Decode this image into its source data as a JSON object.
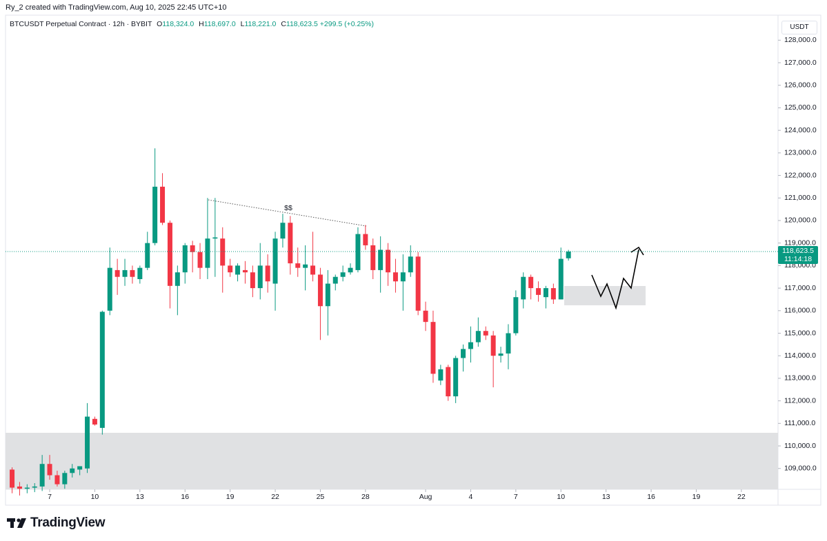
{
  "header": {
    "caption": "Ry_2 created with TradingView.com, Aug 10, 2025 22:45 UTC+10"
  },
  "legend": {
    "symbol": "BTCUSDT Perpetual Contract · 12h · BYBIT",
    "open_key": "O",
    "open": "118,324.0",
    "high_key": "H",
    "high": "118,697.0",
    "low_key": "L",
    "low": "118,221.0",
    "close_key": "C",
    "close": "118,623.5",
    "change": "+299.5 (+0.25%)"
  },
  "currency": "USDT",
  "brand": "TradingView",
  "chart_data": {
    "type": "candlestick",
    "up_color": "#089981",
    "down_color": "#f23645",
    "x": [
      "2025-07-04T12:00",
      "2025-07-05T00:00",
      "2025-07-05T12:00",
      "2025-07-06T00:00",
      "2025-07-06T12:00",
      "2025-07-07T00:00",
      "2025-07-07T12:00",
      "2025-07-08T00:00",
      "2025-07-08T12:00",
      "2025-07-09T00:00",
      "2025-07-09T12:00",
      "2025-07-10T00:00",
      "2025-07-10T12:00",
      "2025-07-11T00:00",
      "2025-07-11T12:00",
      "2025-07-12T00:00",
      "2025-07-12T12:00",
      "2025-07-13T00:00",
      "2025-07-13T12:00",
      "2025-07-14T00:00",
      "2025-07-14T12:00",
      "2025-07-15T00:00",
      "2025-07-15T12:00",
      "2025-07-16T00:00",
      "2025-07-16T12:00",
      "2025-07-17T00:00",
      "2025-07-17T12:00",
      "2025-07-18T00:00",
      "2025-07-18T12:00",
      "2025-07-19T00:00",
      "2025-07-19T12:00",
      "2025-07-20T00:00",
      "2025-07-20T12:00",
      "2025-07-21T00:00",
      "2025-07-21T12:00",
      "2025-07-22T00:00",
      "2025-07-22T12:00",
      "2025-07-23T00:00",
      "2025-07-23T12:00",
      "2025-07-24T00:00",
      "2025-07-24T12:00",
      "2025-07-25T00:00",
      "2025-07-25T12:00",
      "2025-07-26T00:00",
      "2025-07-26T12:00",
      "2025-07-27T00:00",
      "2025-07-27T12:00",
      "2025-07-28T00:00",
      "2025-07-28T12:00",
      "2025-07-29T00:00",
      "2025-07-29T12:00",
      "2025-07-30T00:00",
      "2025-07-30T12:00",
      "2025-07-31T00:00",
      "2025-07-31T12:00",
      "2025-08-01T00:00",
      "2025-08-01T12:00",
      "2025-08-02T00:00",
      "2025-08-02T12:00",
      "2025-08-03T00:00",
      "2025-08-03T12:00",
      "2025-08-04T00:00",
      "2025-08-04T12:00",
      "2025-08-05T00:00",
      "2025-08-05T12:00",
      "2025-08-06T00:00",
      "2025-08-06T12:00",
      "2025-08-07T00:00",
      "2025-08-07T12:00",
      "2025-08-08T00:00",
      "2025-08-08T12:00",
      "2025-08-09T00:00",
      "2025-08-09T12:00",
      "2025-08-10T00:00",
      "2025-08-10T12:00"
    ],
    "open": [
      108950,
      108200,
      108100,
      108150,
      108200,
      109200,
      108700,
      108300,
      108800,
      108950,
      109000,
      111200,
      110800,
      116000,
      117800,
      117500,
      117800,
      117400,
      117900,
      119000,
      121500,
      119900,
      117100,
      117700,
      118900,
      118600,
      117900,
      119200,
      119200,
      118000,
      117600,
      117800,
      117700,
      117000,
      118000,
      117200,
      119200,
      119900,
      118100,
      117900,
      118000,
      117600,
      116200,
      117200,
      117500,
      117700,
      117800,
      119400,
      118900,
      117800,
      118700,
      117700,
      117300,
      117700,
      118400,
      116000,
      115500,
      112900,
      113500,
      112200,
      113900,
      114300,
      114600,
      115100,
      114900,
      114000,
      114100,
      115000,
      116500,
      117500,
      117000,
      116600,
      117000,
      116500,
      118324
    ],
    "high": [
      109050,
      108400,
      108300,
      108350,
      109600,
      109600,
      108900,
      108900,
      109200,
      109100,
      111900,
      111300,
      116000,
      118800,
      118300,
      118300,
      118000,
      118000,
      119500,
      123200,
      122100,
      120000,
      118000,
      119000,
      119100,
      119000,
      121000,
      121000,
      119700,
      118300,
      118100,
      118200,
      118000,
      119000,
      118500,
      119500,
      120300,
      120200,
      118800,
      118900,
      119500,
      117900,
      117800,
      117600,
      118000,
      118100,
      119700,
      119800,
      119200,
      119300,
      119000,
      118300,
      118500,
      118900,
      118600,
      116400,
      116000,
      113600,
      113600,
      114000,
      114500,
      115300,
      115700,
      115300,
      115100,
      114400,
      115400,
      116900,
      117700,
      117600,
      117300,
      117100,
      117200,
      118800,
      118697
    ],
    "low": [
      107900,
      107800,
      107900,
      107950,
      108000,
      108500,
      108200,
      108100,
      108600,
      108700,
      108800,
      110900,
      110500,
      115800,
      116700,
      117100,
      117200,
      117200,
      117800,
      118900,
      119800,
      116100,
      115800,
      117200,
      117700,
      117400,
      117400,
      117500,
      116800,
      117500,
      117300,
      117200,
      116600,
      116500,
      116800,
      116000,
      118800,
      117600,
      117500,
      116900,
      117300,
      114700,
      114900,
      116900,
      117300,
      117600,
      117700,
      118700,
      117400,
      116800,
      117100,
      116800,
      116000,
      117500,
      115800,
      115100,
      112800,
      112700,
      112000,
      111900,
      113300,
      113700,
      114400,
      114700,
      112600,
      113700,
      113400,
      114900,
      116100,
      116500,
      116400,
      116100,
      116300,
      116500,
      118221
    ],
    "close": [
      108150,
      108100,
      108150,
      108200,
      109200,
      108700,
      108300,
      108800,
      109000,
      109100,
      111300,
      110950,
      115950,
      117900,
      117500,
      117800,
      117500,
      117900,
      119000,
      121500,
      119900,
      117100,
      117700,
      118900,
      118600,
      117900,
      119200,
      119250,
      118000,
      117700,
      118000,
      117700,
      117000,
      118000,
      117300,
      119200,
      119900,
      118100,
      117900,
      118050,
      117600,
      116200,
      117200,
      117500,
      117700,
      117900,
      119400,
      118900,
      117800,
      118700,
      117700,
      117300,
      117700,
      118400,
      116000,
      115500,
      113200,
      113400,
      112200,
      113900,
      114300,
      114600,
      115100,
      114900,
      114000,
      114100,
      115000,
      116600,
      117500,
      117000,
      116700,
      117000,
      116500,
      118300,
      118623.5
    ],
    "xlim": [
      "2025-07-04T01:30",
      "2025-08-24T10:30"
    ],
    "xticks": [
      {
        "value": "2025-07-07T00:00",
        "label": "7"
      },
      {
        "value": "2025-07-10T00:00",
        "label": "10"
      },
      {
        "value": "2025-07-13T00:00",
        "label": "13"
      },
      {
        "value": "2025-07-16T00:00",
        "label": "16"
      },
      {
        "value": "2025-07-19T00:00",
        "label": "19"
      },
      {
        "value": "2025-07-22T00:00",
        "label": "22"
      },
      {
        "value": "2025-07-25T00:00",
        "label": "25"
      },
      {
        "value": "2025-07-28T00:00",
        "label": "28"
      },
      {
        "value": "2025-08-01T00:00",
        "label": "Aug"
      },
      {
        "value": "2025-08-04T00:00",
        "label": "4"
      },
      {
        "value": "2025-08-07T00:00",
        "label": "7"
      },
      {
        "value": "2025-08-10T00:00",
        "label": "10"
      },
      {
        "value": "2025-08-13T00:00",
        "label": "13"
      },
      {
        "value": "2025-08-16T00:00",
        "label": "16"
      },
      {
        "value": "2025-08-19T00:00",
        "label": "19"
      },
      {
        "value": "2025-08-22T00:00",
        "label": "22"
      }
    ],
    "ylim": [
      108075,
      129110
    ],
    "yticks": [
      {
        "value": 109000,
        "label": "109,000.0"
      },
      {
        "value": 110000,
        "label": "110,000.0"
      },
      {
        "value": 111000,
        "label": "111,000.0"
      },
      {
        "value": 112000,
        "label": "112,000.0"
      },
      {
        "value": 113000,
        "label": "113,000.0"
      },
      {
        "value": 114000,
        "label": "114,000.0"
      },
      {
        "value": 115000,
        "label": "115,000.0"
      },
      {
        "value": 116000,
        "label": "116,000.0"
      },
      {
        "value": 117000,
        "label": "117,000.0"
      },
      {
        "value": 118000,
        "label": "118,000.0"
      },
      {
        "value": 119000,
        "label": "119,000.0"
      },
      {
        "value": 120000,
        "label": "120,000.0"
      },
      {
        "value": 121000,
        "label": "121,000.0"
      },
      {
        "value": 122000,
        "label": "122,000.0"
      },
      {
        "value": 123000,
        "label": "123,000.0"
      },
      {
        "value": 124000,
        "label": "124,000.0"
      },
      {
        "value": 125000,
        "label": "125,000.0"
      },
      {
        "value": 126000,
        "label": "126,000.0"
      },
      {
        "value": 127000,
        "label": "127,000.0"
      },
      {
        "value": 128000,
        "label": "128,000.0"
      }
    ],
    "last_price": {
      "value": 118623.5,
      "label": "118,623.5"
    },
    "countdown": "11:14:18",
    "annotation": "$$"
  }
}
